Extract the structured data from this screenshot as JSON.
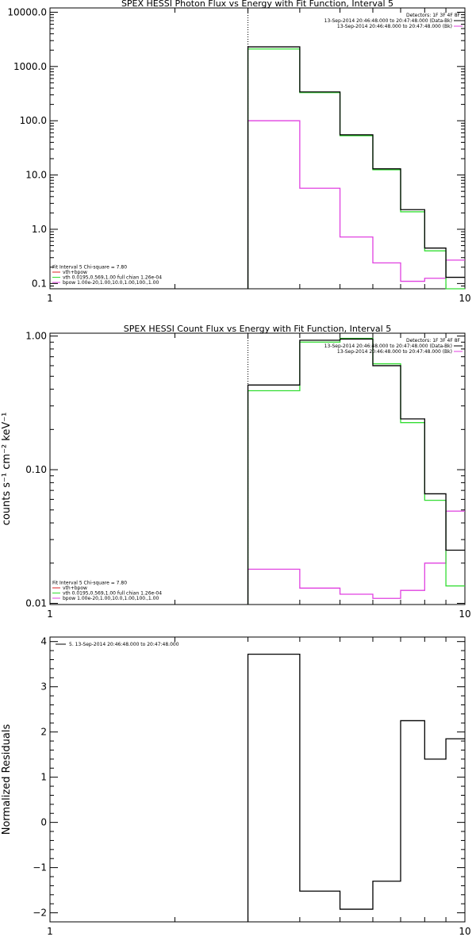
{
  "colors": {
    "black": "#000000",
    "magenta": "#e040e0",
    "green": "#33dd33",
    "red": "#dd2222"
  },
  "chart_data": [
    {
      "type": "line",
      "title": "SPEX HESSI Photon Flux vs Energy with Fit Function, Interval 5",
      "xlabel": "",
      "ylabel": "",
      "xscale": "log",
      "yscale": "log",
      "xlim": [
        1,
        10
      ],
      "ylim": [
        0.08,
        12000
      ],
      "x_ticks": [
        {
          "v": 1,
          "label": "1"
        },
        {
          "v": 10,
          "label": "10"
        }
      ],
      "y_ticks": [
        {
          "v": 0.1,
          "label": "0.1"
        },
        {
          "v": 1,
          "label": "1.0"
        },
        {
          "v": 10,
          "label": "10.0"
        },
        {
          "v": 100,
          "label": "100.0"
        },
        {
          "v": 1000,
          "label": "1000.0"
        },
        {
          "v": 10000,
          "label": "10000.0"
        }
      ],
      "bin_edges": [
        3,
        4,
        5,
        6,
        7,
        8,
        9,
        10
      ],
      "vline": 3,
      "series": [
        {
          "key": "total",
          "color": "black",
          "values": [
            2300,
            340,
            55,
            13,
            2.3,
            0.45,
            0.13
          ]
        },
        {
          "key": "vth",
          "color": "green",
          "values": [
            2100,
            330,
            53,
            12.5,
            2.1,
            0.4,
            0.08
          ]
        },
        {
          "key": "bpow",
          "color": "magenta",
          "values": [
            100,
            5.7,
            0.72,
            0.24,
            0.11,
            0.125,
            0.27
          ]
        }
      ],
      "legend_top": {
        "lines": [
          {
            "text": "Detectors: 1F 3F 4F 8F",
            "color": ""
          },
          {
            "text": "13-Sep-2014 20:46:48.000 to 20:47:48.000 (Data-Bk)",
            "color": "black"
          },
          {
            "text": "13-Sep-2014 20:46:48.000 to 20:47:48.000 (Bk)",
            "color": "magenta"
          }
        ]
      },
      "legend_bottom": {
        "lines": [
          {
            "text": "Fit Interval 5   Chi-square = 7.80",
            "color": ""
          },
          {
            "text": "vth+bpow",
            "color": "red"
          },
          {
            "text": "vth 0.0195,0.569,1.00  full chian 1.26e-04",
            "color": "green"
          },
          {
            "text": "bpow 1.00e-20,1.00,10.0,1.00,100.,1.00",
            "color": "magenta"
          }
        ]
      }
    },
    {
      "type": "line",
      "title": "SPEX HESSI Count Flux vs Energy with Fit Function, Interval 5",
      "xlabel": "",
      "ylabel": "counts s⁻¹ cm⁻² keV⁻¹",
      "xscale": "log",
      "yscale": "log",
      "xlim": [
        1,
        10
      ],
      "ylim": [
        0.0098,
        1.05
      ],
      "x_ticks": [
        {
          "v": 1,
          "label": "1"
        },
        {
          "v": 10,
          "label": "10"
        }
      ],
      "y_ticks": [
        {
          "v": 0.01,
          "label": "0.01"
        },
        {
          "v": 0.1,
          "label": "0.10"
        },
        {
          "v": 1,
          "label": "1.00"
        }
      ],
      "bin_edges": [
        3,
        4,
        5,
        6,
        7,
        8,
        9,
        10
      ],
      "vline": 3,
      "series": [
        {
          "key": "total",
          "color": "black",
          "values": [
            0.43,
            0.93,
            0.95,
            0.6,
            0.24,
            0.066,
            0.025
          ]
        },
        {
          "key": "vth",
          "color": "green",
          "values": [
            0.39,
            0.9,
            0.96,
            0.62,
            0.225,
            0.059,
            0.0135
          ]
        },
        {
          "key": "bpow",
          "color": "magenta",
          "values": [
            0.018,
            0.013,
            0.0117,
            0.0109,
            0.0125,
            0.02,
            0.049
          ]
        }
      ],
      "legend_top": {
        "lines": [
          {
            "text": "Detectors: 1F 3F 4F 8F",
            "color": ""
          },
          {
            "text": "13-Sep-2014 20:46:48.000 to 20:47:48.000 (Data-Bk)",
            "color": "black"
          },
          {
            "text": "13-Sep-2014 20:46:48.000 to 20:47:48.000 (Bk)",
            "color": "magenta"
          }
        ]
      },
      "legend_bottom": {
        "lines": [
          {
            "text": "Fit Interval 5   Chi-square = 7.80",
            "color": ""
          },
          {
            "text": "vth+bpow",
            "color": "red"
          },
          {
            "text": "vth 0.0195,0.569,1.00  full chian 1.26e-04",
            "color": "green"
          },
          {
            "text": "bpow 1.00e-20,1.00,10.0,1.00,100.,1.00",
            "color": "magenta"
          }
        ]
      }
    },
    {
      "type": "line",
      "title": "",
      "xlabel": "",
      "ylabel": "Normalized Residuals",
      "xscale": "log",
      "yscale": "linear",
      "xlim": [
        1,
        10
      ],
      "ylim": [
        -2.2,
        4.1
      ],
      "x_ticks": [
        {
          "v": 1,
          "label": "1"
        },
        {
          "v": 10,
          "label": "10"
        }
      ],
      "y_ticks": [
        {
          "v": -2,
          "label": "−2"
        },
        {
          "v": -1,
          "label": "−1"
        },
        {
          "v": 0,
          "label": "0"
        },
        {
          "v": 1,
          "label": "1"
        },
        {
          "v": 2,
          "label": "2"
        },
        {
          "v": 3,
          "label": "3"
        },
        {
          "v": 4,
          "label": "4"
        }
      ],
      "bin_edges": [
        3,
        4,
        5,
        6,
        7,
        8,
        9,
        10
      ],
      "series": [
        {
          "key": "residuals",
          "color": "black",
          "values": [
            3.72,
            -1.52,
            -1.92,
            -1.3,
            2.25,
            1.4,
            1.85
          ]
        }
      ],
      "legend_top": {
        "lines": [
          {
            "text": "5. 13-Sep-2014 20:46:48.000 to 20:47:48.000",
            "color": "black"
          }
        ]
      }
    }
  ]
}
